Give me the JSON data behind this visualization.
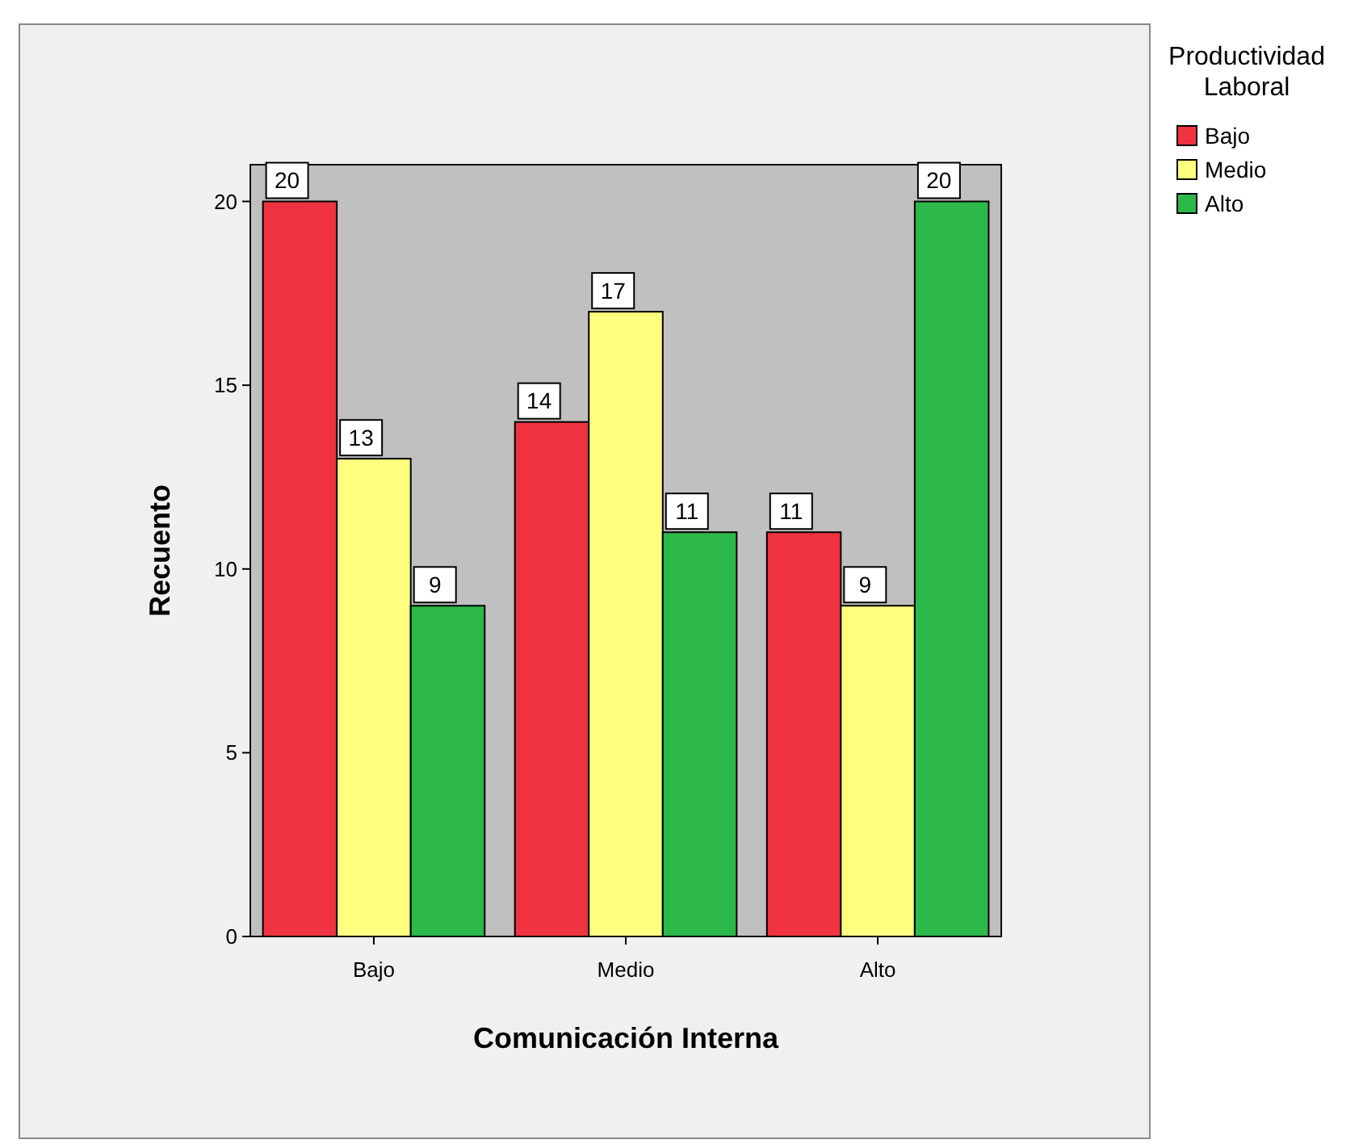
{
  "chart_data": {
    "type": "bar",
    "xlabel": "Comunicación Interna",
    "ylabel": "Recuento",
    "legend_title": "Productividad Laboral",
    "categories": [
      "Bajo",
      "Medio",
      "Alto"
    ],
    "series": [
      {
        "name": "Bajo",
        "color": "#ef3340",
        "values": [
          20,
          14,
          11
        ]
      },
      {
        "name": "Medio",
        "color": "#ffff80",
        "values": [
          13,
          17,
          9
        ]
      },
      {
        "name": "Alto",
        "color": "#2db84a",
        "values": [
          9,
          11,
          20
        ]
      }
    ],
    "ylim": [
      0,
      21
    ],
    "yticks": [
      0,
      5,
      10,
      15,
      20
    ],
    "data_labels": true,
    "legend": "top right"
  }
}
